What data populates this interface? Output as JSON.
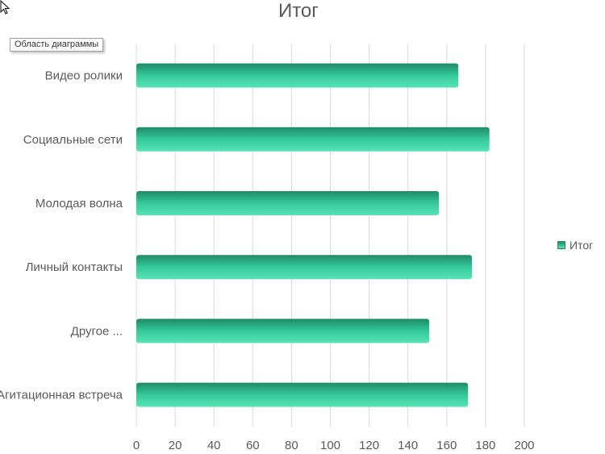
{
  "chart_data": {
    "type": "bar",
    "orientation": "horizontal",
    "title": "Итог",
    "categories": [
      "Видео ролики",
      "Социальные сети",
      "Молодая волна",
      "Личный контакты",
      "Другое ...",
      "Агитационная встреча"
    ],
    "series": [
      {
        "name": "Итог",
        "values": [
          166,
          182,
          156,
          173,
          151,
          171
        ]
      }
    ],
    "xlim": [
      0,
      200
    ],
    "xticks": [
      0,
      20,
      40,
      60,
      80,
      100,
      120,
      140,
      160,
      180,
      200
    ],
    "grid": "vertical",
    "legend": "right",
    "bar_color_dark": "#1e8a66",
    "bar_color_light": "#57e3b5",
    "bar_color_mid": "#35c99a"
  },
  "tooltip": {
    "label": "Область диаграммы"
  }
}
